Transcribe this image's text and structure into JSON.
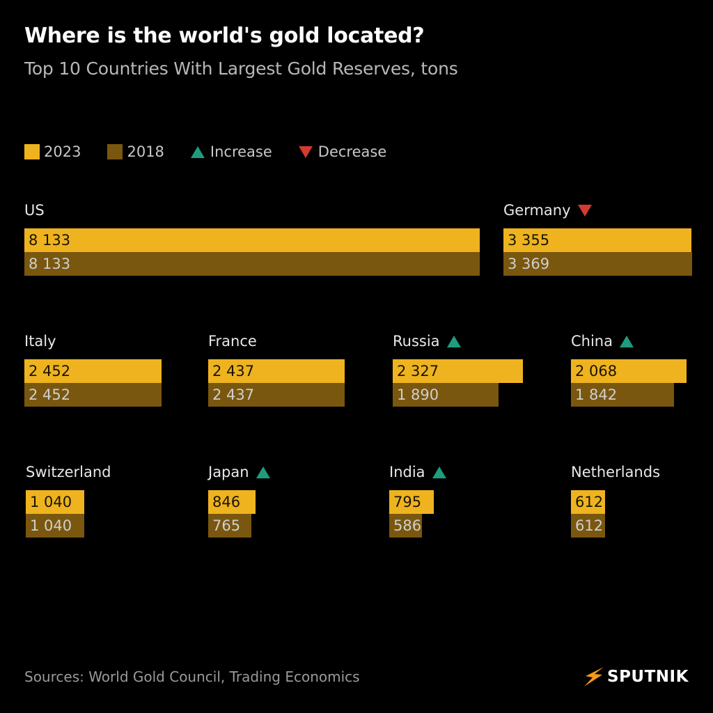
{
  "title": "Where is the world's gold located?",
  "subtitle": "Top 10 Countries With Largest Gold Reserves, tons",
  "legend": {
    "y2023": "2023",
    "y2018": "2018",
    "increase": "Increase",
    "decrease": "Decrease"
  },
  "colors": {
    "y2023": "#eeb31f",
    "y2018": "#7a570f",
    "increase": "#1e9c7e",
    "decrease": "#d23b32"
  },
  "source": "Sources: World Gold Council, Trading Economics",
  "logo": {
    "text": "SPUTNIK",
    "icon": "sputnik-bolt-icon"
  },
  "chart_data": {
    "type": "bar",
    "unit": "tons",
    "series": [
      {
        "name": "2023",
        "values": [
          8133,
          3355,
          2452,
          2437,
          2327,
          2068,
          1040,
          846,
          795,
          612
        ]
      },
      {
        "name": "2018",
        "values": [
          8133,
          3369,
          2452,
          2437,
          1890,
          1842,
          1040,
          765,
          586,
          612
        ]
      }
    ],
    "categories": [
      "US",
      "Germany",
      "Italy",
      "France",
      "Russia",
      "China",
      "Switzerland",
      "Japan",
      "India",
      "Netherlands"
    ],
    "countries": [
      {
        "name": "US",
        "v2023": 8133,
        "v2018": 8133,
        "label2023": "8 133",
        "label2018": "8 133",
        "trend": "none"
      },
      {
        "name": "Germany",
        "v2023": 3355,
        "v2018": 3369,
        "label2023": "3 355",
        "label2018": "3 369",
        "trend": "decrease"
      },
      {
        "name": "Italy",
        "v2023": 2452,
        "v2018": 2452,
        "label2023": "2 452",
        "label2018": "2 452",
        "trend": "none"
      },
      {
        "name": "France",
        "v2023": 2437,
        "v2018": 2437,
        "label2023": "2 437",
        "label2018": "2 437",
        "trend": "none"
      },
      {
        "name": "Russia",
        "v2023": 2327,
        "v2018": 1890,
        "label2023": "2 327",
        "label2018": "1 890",
        "trend": "increase"
      },
      {
        "name": "China",
        "v2023": 2068,
        "v2018": 1842,
        "label2023": "2 068",
        "label2018": "1 842",
        "trend": "increase"
      },
      {
        "name": "Switzerland",
        "v2023": 1040,
        "v2018": 1040,
        "label2023": "1 040",
        "label2018": "1 040",
        "trend": "none"
      },
      {
        "name": "Japan",
        "v2023": 846,
        "v2018": 765,
        "label2023": "846",
        "label2018": "765",
        "trend": "increase"
      },
      {
        "name": "India",
        "v2023": 795,
        "v2018": 586,
        "label2023": "795",
        "label2018": "586",
        "trend": "increase"
      },
      {
        "name": "Netherlands",
        "v2023": 612,
        "v2018": 612,
        "label2023": "612",
        "label2018": "612",
        "trend": "none"
      }
    ],
    "legend_position": "top-left",
    "grid": false
  }
}
